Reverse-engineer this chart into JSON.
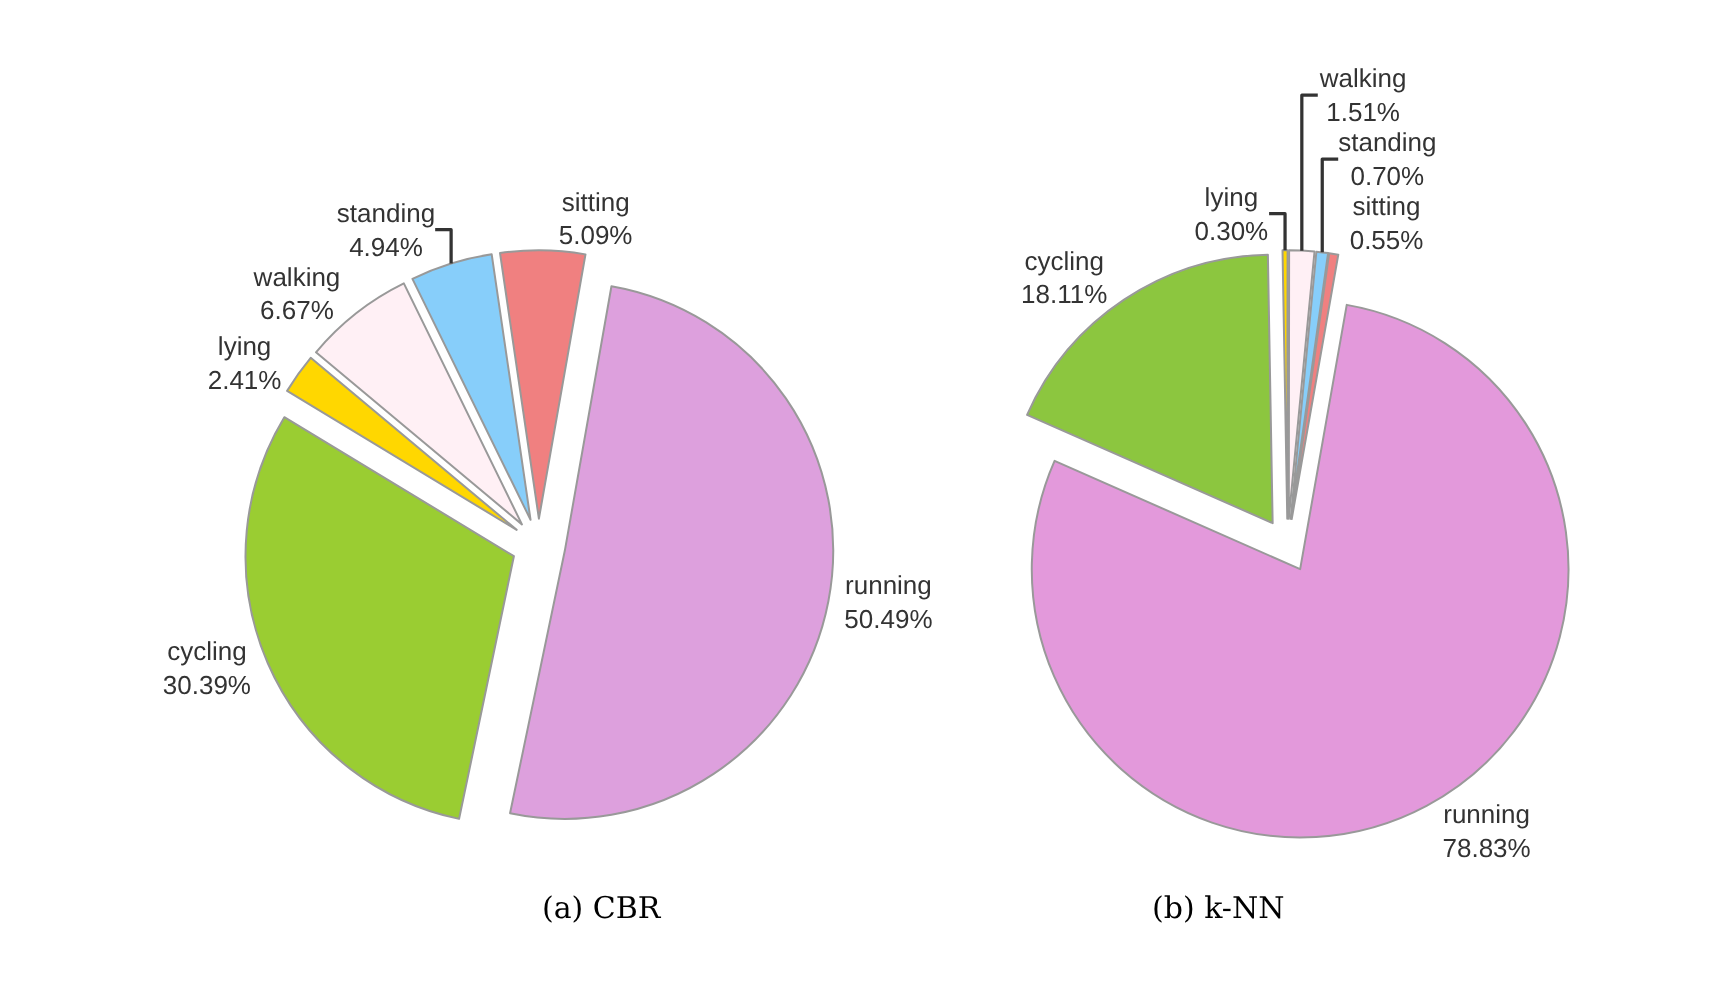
{
  "chart_data": [
    {
      "type": "pie",
      "title": "(a) CBR",
      "categories": [
        "running",
        "cycling",
        "lying",
        "walking",
        "standing",
        "sitting"
      ],
      "values": [
        50.49,
        30.39,
        2.41,
        6.67,
        4.94,
        5.09
      ],
      "value_labels": [
        "50.49%",
        "30.39%",
        "2.41%",
        "6.67%",
        "4.94%",
        "5.09%"
      ],
      "colors": [
        "#dda0dd",
        "#9acd32",
        "#ffd700",
        "#fff0f5",
        "#87cefa",
        "#f08080"
      ]
    },
    {
      "type": "pie",
      "title": "(b) k-NN",
      "categories": [
        "running",
        "cycling",
        "lying",
        "walking",
        "standing",
        "sitting"
      ],
      "values": [
        78.83,
        18.11,
        0.3,
        1.51,
        0.7,
        0.55
      ],
      "value_labels": [
        "78.83%",
        "18.11%",
        "0.30%",
        "1.51%",
        "0.70%",
        "0.55%"
      ],
      "colors": [
        "#e399db",
        "#8cc63f",
        "#ffd700",
        "#fff0f5",
        "#87cefa",
        "#f08080"
      ]
    }
  ]
}
